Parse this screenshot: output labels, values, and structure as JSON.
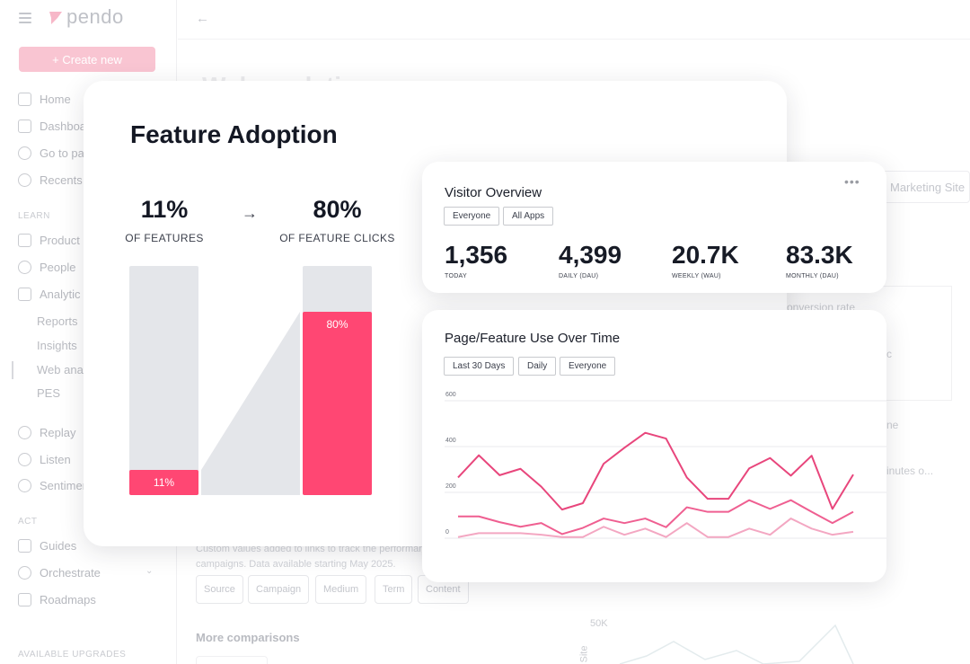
{
  "app": {
    "logo_text": "pendo",
    "create_button": "+ Create new",
    "nav": {
      "home": "Home",
      "dashboards": "Dashboa",
      "goto": "Go to pa",
      "recents": "Recents",
      "learn_section": "LEARN",
      "product": "Product",
      "people": "People",
      "analytics": "Analytic",
      "reports": "Reports",
      "insights": "Insights",
      "web_analytics": "Web ana",
      "pes": "PES",
      "replay": "Replay",
      "listen": "Listen",
      "sentiment": "Sentimer",
      "act_section": "ACT",
      "guides": "Guides",
      "orchestrate": "Orchestrate",
      "roadmaps": "Roadmaps",
      "upgrades_section": "AVAILABLE UPGRADES"
    },
    "background": {
      "page_title": "Web analyti",
      "site_field": "Marketing Site",
      "conversion_rate": "onversion rate",
      "frag_c": "c",
      "frag_ne": "ne",
      "frag_minutes": "inutes o...",
      "description": "Custom values added to links to track the performance of campaigns. Data available starting May 2025.",
      "chips": [
        "Source",
        "Campaign",
        "Medium",
        "Term",
        "Content"
      ],
      "more_comparisons": "More comparisons",
      "axis_value": "50K",
      "axis_label": "Site"
    }
  },
  "feature_adoption": {
    "title": "Feature Adoption",
    "left_stat": {
      "value": "11%",
      "label": "OF FEATURES"
    },
    "right_stat": {
      "value": "80%",
      "label": "OF FEATURE CLICKS"
    },
    "colors": {
      "accent": "#ff4773",
      "track": "#e4e6ea"
    }
  },
  "visitor_overview": {
    "title": "Visitor Overview",
    "more_icon": "more-horizontal-icon",
    "filters": [
      "Everyone",
      "All Apps"
    ],
    "metrics": [
      {
        "value": "1,356",
        "label": "TODAY"
      },
      {
        "value": "4,399",
        "label": "DAILY (DAU)"
      },
      {
        "value": "20.7K",
        "label": "WEEKLY (WAU)"
      },
      {
        "value": "83.3K",
        "label": "MONTHLY (DAU)"
      }
    ]
  },
  "page_feature_use": {
    "title": "Page/Feature Use Over Time",
    "filters": [
      "Last 30 Days",
      "Daily",
      "Everyone"
    ]
  },
  "chart_data": [
    {
      "type": "bar",
      "title": "Feature Adoption",
      "categories": [
        "OF FEATURES",
        "OF FEATURE CLICKS"
      ],
      "values": [
        11,
        80
      ],
      "data_labels": [
        "11%",
        "80%"
      ],
      "ylim": [
        0,
        100
      ],
      "grid": false
    },
    {
      "type": "line",
      "title": "Page/Feature Use Over Time",
      "y_ticks": [
        0,
        200,
        400,
        600
      ],
      "ylim": [
        0,
        600
      ],
      "grid": true,
      "x": [
        1,
        2,
        3,
        4,
        5,
        6,
        7,
        8,
        9,
        10,
        11,
        12,
        13,
        14,
        15,
        16,
        17,
        18,
        19,
        20
      ],
      "series": [
        {
          "color": "#e8467c",
          "values": [
            265,
            362,
            275,
            303,
            225,
            125,
            153,
            325,
            395,
            460,
            435,
            265,
            172,
            172,
            305,
            350,
            273,
            360,
            128,
            278
          ]
        },
        {
          "color": "#ef5f91",
          "values": [
            95,
            95,
            70,
            50,
            66,
            18,
            45,
            86,
            66,
            86,
            48,
            135,
            115,
            115,
            166,
            128,
            166,
            115,
            66,
            115
          ]
        },
        {
          "color": "#f3a7c2",
          "values": [
            5,
            22,
            22,
            22,
            15,
            5,
            5,
            50,
            15,
            42,
            5,
            66,
            5,
            5,
            42,
            15,
            86,
            42,
            15,
            28
          ]
        }
      ]
    }
  ]
}
